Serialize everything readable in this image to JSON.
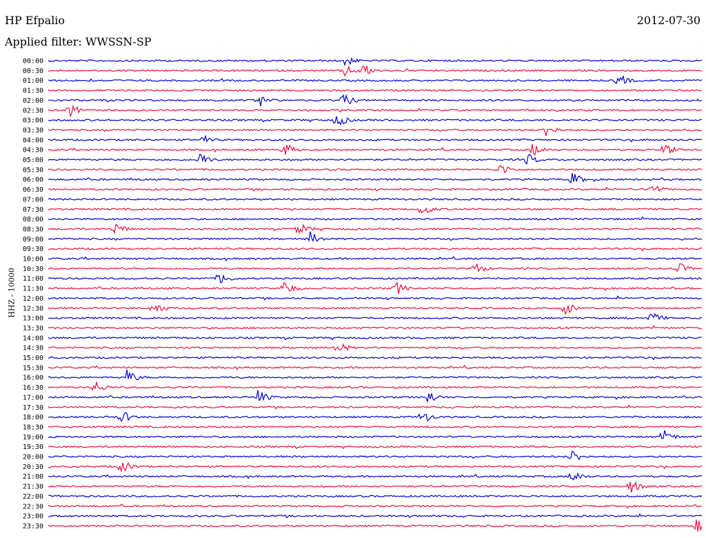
{
  "header": {
    "station": "HP Efpalio",
    "date": "2012-07-30",
    "filter": "Applied filter: WWSSN-SP"
  },
  "chart_data": {
    "type": "line",
    "ylabel": "HHZ - 10000",
    "time_labels": [
      "00:00",
      "00:30",
      "01:00",
      "01:30",
      "02:00",
      "02:30",
      "03:00",
      "03:30",
      "04:00",
      "04:30",
      "05:00",
      "05:30",
      "06:00",
      "06:30",
      "07:00",
      "07:30",
      "08:00",
      "08:30",
      "09:00",
      "09:30",
      "10:00",
      "10:30",
      "11:00",
      "11:30",
      "12:00",
      "12:30",
      "13:00",
      "13:30",
      "14:00",
      "14:30",
      "15:00",
      "15:30",
      "16:00",
      "16:30",
      "17:00",
      "17:30",
      "18:00",
      "18:30",
      "19:00",
      "19:30",
      "20:00",
      "20:30",
      "21:00",
      "21:30",
      "22:00",
      "22:30",
      "23:00",
      "23:30"
    ],
    "colors": [
      "#0000cc",
      "#e8103c"
    ],
    "events": [
      {
        "row": 0,
        "x": 0.45
      },
      {
        "row": 1,
        "x": 0.45
      },
      {
        "row": 1,
        "x": 0.48
      },
      {
        "row": 2,
        "x": 0.87
      },
      {
        "row": 4,
        "x": 0.32
      },
      {
        "row": 4,
        "x": 0.45
      },
      {
        "row": 5,
        "x": 0.03
      },
      {
        "row": 6,
        "x": 0.44
      },
      {
        "row": 7,
        "x": 0.76
      },
      {
        "row": 8,
        "x": 0.23
      },
      {
        "row": 9,
        "x": 0.36
      },
      {
        "row": 9,
        "x": 0.74
      },
      {
        "row": 9,
        "x": 0.94
      },
      {
        "row": 10,
        "x": 0.23
      },
      {
        "row": 10,
        "x": 0.73
      },
      {
        "row": 11,
        "x": 0.69
      },
      {
        "row": 12,
        "x": 0.8
      },
      {
        "row": 13,
        "x": 0.92
      },
      {
        "row": 15,
        "x": 0.57
      },
      {
        "row": 17,
        "x": 0.1
      },
      {
        "row": 17,
        "x": 0.38
      },
      {
        "row": 18,
        "x": 0.4
      },
      {
        "row": 21,
        "x": 0.65
      },
      {
        "row": 21,
        "x": 0.96
      },
      {
        "row": 22,
        "x": 0.26
      },
      {
        "row": 23,
        "x": 0.36
      },
      {
        "row": 23,
        "x": 0.53
      },
      {
        "row": 25,
        "x": 0.16
      },
      {
        "row": 25,
        "x": 0.79
      },
      {
        "row": 26,
        "x": 0.92
      },
      {
        "row": 29,
        "x": 0.44
      },
      {
        "row": 32,
        "x": 0.12
      },
      {
        "row": 33,
        "x": 0.07
      },
      {
        "row": 34,
        "x": 0.32
      },
      {
        "row": 34,
        "x": 0.58
      },
      {
        "row": 36,
        "x": 0.11
      },
      {
        "row": 36,
        "x": 0.57
      },
      {
        "row": 38,
        "x": 0.94
      },
      {
        "row": 40,
        "x": 0.8
      },
      {
        "row": 41,
        "x": 0.11
      },
      {
        "row": 42,
        "x": 0.8
      },
      {
        "row": 43,
        "x": 0.89
      },
      {
        "row": 47,
        "x": 0.99
      }
    ]
  }
}
